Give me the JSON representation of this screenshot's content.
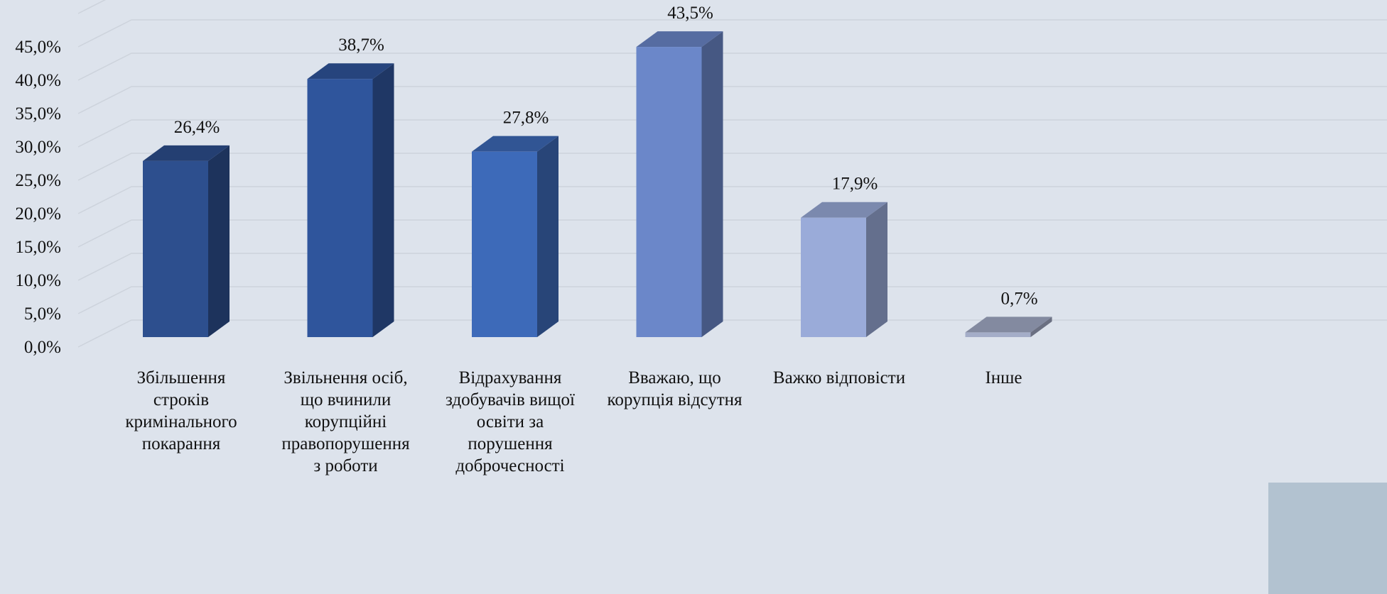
{
  "chart_data": {
    "type": "bar3d",
    "categories": [
      "Збільшення\nстроків\nкримінального\nпокарання",
      "Звільнення осіб,\nщо вчинили\nкорупційні\nправопорушення\nз роботи",
      "Відрахування\nздобувачів вищої\nосвіти за\nпорушення\nдоброчесності",
      "Вважаю, що\nкорупція відсутня",
      "Важко відповісти",
      "Інше"
    ],
    "values": [
      26.4,
      38.7,
      27.8,
      43.5,
      17.9,
      0.7
    ],
    "value_labels": [
      "26,4%",
      "38,7%",
      "27,8%",
      "43,5%",
      "17,9%",
      "0,7%"
    ],
    "colors": [
      "#2d4f8e",
      "#2f559c",
      "#3d6ab9",
      "#6b87c9",
      "#9aabd9",
      "#a4adc8"
    ],
    "ylim": [
      0,
      50
    ],
    "yticks": [
      {
        "value": 0,
        "label": "0,0%"
      },
      {
        "value": 5,
        "label": "5,0%"
      },
      {
        "value": 10,
        "label": "10,0%"
      },
      {
        "value": 15,
        "label": "15,0%"
      },
      {
        "value": 20,
        "label": "20,0%"
      },
      {
        "value": 25,
        "label": "25,0%"
      },
      {
        "value": 30,
        "label": "30,0%"
      },
      {
        "value": 35,
        "label": "35,0%"
      },
      {
        "value": 40,
        "label": "40,0%"
      },
      {
        "value": 45,
        "label": "45,0%"
      }
    ],
    "grid": true
  }
}
